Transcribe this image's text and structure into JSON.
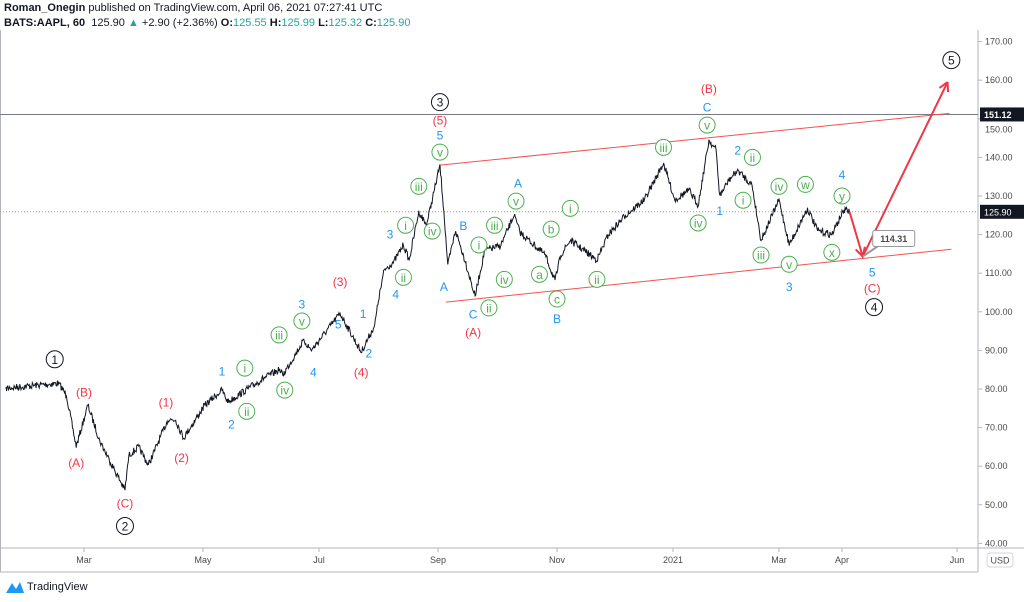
{
  "header": {
    "author": "Roman_Onegin",
    "published": "published on TradingView.com, April 06, 2021 07:27:41 UTC",
    "symbol": "BATS:AAPL, 60",
    "last": "125.90",
    "change": "+2.90 (+2.36%)",
    "o_label": "O:",
    "o": "125.55",
    "h_label": "H:",
    "h": "125.99",
    "l_label": "L:",
    "l": "125.32",
    "c_label": "C:",
    "c": "125.90",
    "up_color": "#26a69a"
  },
  "footer": {
    "brand": "TradingView"
  },
  "chart_data": {
    "type": "line",
    "title": "",
    "currency": "USD",
    "ylim": [
      38.8,
      173
    ],
    "y_ticks": [
      "170.00",
      "160.00",
      "150.00",
      "140.00",
      "130.00",
      "120.00",
      "110.00",
      "100.00",
      "90.00",
      "80.00",
      "70.00",
      "60.00",
      "50.00",
      "40.00"
    ],
    "x_ticks": [
      {
        "label": "Mar",
        "date": "2020-03-01"
      },
      {
        "label": "May",
        "date": "2020-05-01"
      },
      {
        "label": "Jul",
        "date": "2020-07-01"
      },
      {
        "label": "Sep",
        "date": "2020-09-01"
      },
      {
        "label": "Nov",
        "date": "2020-11-01"
      },
      {
        "label": "2021",
        "date": "2021-01-01"
      },
      {
        "label": "Mar",
        "date": "2021-03-01"
      },
      {
        "label": "Apr",
        "date": "2021-04-01"
      },
      {
        "label": "Jun",
        "date": "2021-06-01"
      }
    ],
    "price_series": [
      [
        "2020-01-21",
        80.2
      ],
      [
        "2020-02-17",
        81.5
      ],
      [
        "2020-02-21",
        78.4
      ],
      [
        "2020-02-26",
        65
      ],
      [
        "2020-03-03",
        75.8
      ],
      [
        "2020-03-09",
        66.7
      ],
      [
        "2020-03-14",
        61.6
      ],
      [
        "2020-03-22",
        53.8
      ],
      [
        "2020-03-24",
        62.8
      ],
      [
        "2020-03-29",
        65
      ],
      [
        "2020-04-03",
        60.3
      ],
      [
        "2020-04-13",
        72
      ],
      [
        "2020-04-17",
        72
      ],
      [
        "2020-04-21",
        67.3
      ],
      [
        "2020-05-02",
        75.8
      ],
      [
        "2020-05-11",
        79.7
      ],
      [
        "2020-05-14",
        76.6
      ],
      [
        "2020-06-02",
        82.8
      ],
      [
        "2020-06-10",
        84.9
      ],
      [
        "2020-06-12",
        83.6
      ],
      [
        "2020-06-23",
        92.6
      ],
      [
        "2020-06-27",
        90
      ],
      [
        "2020-07-12",
        99.6
      ],
      [
        "2020-07-23",
        89.5
      ],
      [
        "2020-07-30",
        96.5
      ],
      [
        "2020-08-01",
        103
      ],
      [
        "2020-08-04",
        110.8
      ],
      [
        "2020-08-09",
        113
      ],
      [
        "2020-08-14",
        117.3
      ],
      [
        "2020-08-17",
        113.4
      ],
      [
        "2020-08-22",
        126
      ],
      [
        "2020-08-26",
        122.4
      ],
      [
        "2020-09-02",
        138
      ],
      [
        "2020-09-04",
        126
      ],
      [
        "2020-09-06",
        112
      ],
      [
        "2020-09-10",
        121
      ],
      [
        "2020-09-15",
        113
      ],
      [
        "2020-09-20",
        104
      ],
      [
        "2020-09-25",
        116
      ],
      [
        "2020-10-03",
        117
      ],
      [
        "2020-10-10",
        125
      ],
      [
        "2020-10-13",
        120.6
      ],
      [
        "2020-10-26",
        114.7
      ],
      [
        "2020-10-31",
        108
      ],
      [
        "2020-11-03",
        114.7
      ],
      [
        "2020-11-08",
        118.5
      ],
      [
        "2020-11-22",
        113.4
      ],
      [
        "2020-11-28",
        120
      ],
      [
        "2020-12-07",
        125
      ],
      [
        "2020-12-17",
        129
      ],
      [
        "2020-12-27",
        138.5
      ],
      [
        "2021-01-02",
        129
      ],
      [
        "2021-01-10",
        131.5
      ],
      [
        "2021-01-15",
        127.6
      ],
      [
        "2021-01-21",
        144.5
      ],
      [
        "2021-01-25",
        141.9
      ],
      [
        "2021-01-27",
        130
      ],
      [
        "2021-02-01",
        134
      ],
      [
        "2021-02-06",
        136.7
      ],
      [
        "2021-02-14",
        132.8
      ],
      [
        "2021-02-19",
        118.5
      ],
      [
        "2021-03-01",
        129
      ],
      [
        "2021-03-06",
        117.3
      ],
      [
        "2021-03-15",
        126.8
      ],
      [
        "2021-03-20",
        121
      ],
      [
        "2021-03-27",
        120
      ],
      [
        "2021-04-02",
        126.4
      ],
      [
        "2021-04-05",
        125.9
      ]
    ],
    "last_price": {
      "value": 125.9,
      "label": "125.90",
      "style": "dotted"
    },
    "horizontal_level": {
      "value": 151.12,
      "label": "151.12"
    },
    "channel": {
      "color": "#f05350",
      "upper": [
        [
          "2020-09-02",
          138
        ],
        [
          "2021-05-28",
          151.4
        ]
      ],
      "lower": [
        [
          "2020-09-05",
          102.5
        ],
        [
          "2021-05-29",
          116.2
        ]
      ]
    },
    "projection": {
      "color": "#f23645",
      "points": [
        [
          "2021-04-05",
          125.9
        ],
        [
          "2021-04-12",
          114.31
        ],
        [
          "2021-05-27",
          159.5
        ]
      ],
      "target_label": "114.31"
    },
    "colors": {
      "black": "#131722",
      "red": "#f23645",
      "blue": "#2196f3",
      "green": "#4caf50"
    },
    "annotations": [
      {
        "t": "1",
        "c": "black",
        "circle": true,
        "d": "2020-02-15",
        "p": 87.7
      },
      {
        "t": "2",
        "c": "black",
        "circle": true,
        "d": "2020-03-22",
        "p": 44.5
      },
      {
        "t": "3",
        "c": "black",
        "circle": true,
        "d": "2020-09-02",
        "p": 154.3
      },
      {
        "t": "4",
        "c": "black",
        "circle": true,
        "d": "2021-04-18",
        "p": 101.2
      },
      {
        "t": "5",
        "c": "black",
        "circle": true,
        "d": "2021-05-29",
        "p": 165.2
      },
      {
        "t": "(B)",
        "c": "red",
        "d": "2020-03-01",
        "p": 79.2
      },
      {
        "t": "(A)",
        "c": "red",
        "d": "2020-02-26",
        "p": 61
      },
      {
        "t": "(C)",
        "c": "red",
        "d": "2020-03-22",
        "p": 50.4
      },
      {
        "t": "(1)",
        "c": "red",
        "d": "2020-04-12",
        "p": 76.6
      },
      {
        "t": "(2)",
        "c": "red",
        "d": "2020-04-20",
        "p": 62.3
      },
      {
        "t": "(3)",
        "c": "red",
        "d": "2020-07-12",
        "p": 107.9
      },
      {
        "t": "(4)",
        "c": "red",
        "d": "2020-07-23",
        "p": 84.4
      },
      {
        "t": "(5)",
        "c": "red",
        "d": "2020-09-02",
        "p": 150.2
      },
      {
        "t": "(A)",
        "c": "red",
        "d": "2020-09-19",
        "p": 94.7
      },
      {
        "t": "(B)",
        "c": "red",
        "d": "2021-01-21",
        "p": 157.9
      },
      {
        "t": "(C)",
        "c": "red",
        "d": "2021-04-17",
        "p": 106.1
      },
      {
        "t": "1",
        "c": "blue",
        "d": "2020-05-11",
        "p": 84.6
      },
      {
        "t": "2",
        "c": "blue",
        "d": "2020-05-16",
        "p": 70.9
      },
      {
        "t": "3",
        "c": "blue",
        "d": "2020-06-22",
        "p": 102
      },
      {
        "t": "4",
        "c": "blue",
        "d": "2020-06-28",
        "p": 84.4
      },
      {
        "t": "5",
        "c": "blue",
        "d": "2020-07-11",
        "p": 96.8
      },
      {
        "t": "1",
        "c": "blue",
        "d": "2020-07-24",
        "p": 99.6
      },
      {
        "t": "2",
        "c": "blue",
        "d": "2020-07-27",
        "p": 89.3
      },
      {
        "t": "3",
        "c": "blue",
        "d": "2020-08-07",
        "p": 120.1
      },
      {
        "t": "4",
        "c": "blue",
        "d": "2020-08-10",
        "p": 104.6
      },
      {
        "t": "5",
        "c": "blue",
        "d": "2020-09-02",
        "p": 146.3
      },
      {
        "t": "A",
        "c": "blue",
        "d": "2020-09-04",
        "p": 106.6
      },
      {
        "t": "B",
        "c": "blue",
        "d": "2020-09-14",
        "p": 122.4
      },
      {
        "t": "C",
        "c": "blue",
        "d": "2020-09-19",
        "p": 99.4
      },
      {
        "t": "A",
        "c": "blue",
        "d": "2020-10-12",
        "p": 133.3
      },
      {
        "t": "B",
        "c": "blue",
        "d": "2020-11-01",
        "p": 98.3
      },
      {
        "t": "C",
        "c": "blue",
        "d": "2021-01-20",
        "p": 153
      },
      {
        "t": "2",
        "c": "blue",
        "d": "2021-02-06",
        "p": 141.9
      },
      {
        "t": "1",
        "c": "blue",
        "d": "2021-01-27",
        "p": 126.3
      },
      {
        "t": "4",
        "c": "blue",
        "d": "2021-04-01",
        "p": 135.6
      },
      {
        "t": "3",
        "c": "blue",
        "d": "2021-03-06",
        "p": 106.6
      },
      {
        "t": "5",
        "c": "blue",
        "d": "2021-04-17",
        "p": 110.3
      },
      {
        "t": "i",
        "c": "green",
        "circle": true,
        "d": "2020-05-23",
        "p": 85.4
      },
      {
        "t": "ii",
        "c": "green",
        "circle": true,
        "d": "2020-05-24",
        "p": 74.2
      },
      {
        "t": "iii",
        "c": "green",
        "circle": true,
        "d": "2020-06-10",
        "p": 94
      },
      {
        "t": "iv",
        "c": "green",
        "circle": true,
        "d": "2020-06-13",
        "p": 79.7
      },
      {
        "t": "v",
        "c": "green",
        "circle": true,
        "d": "2020-06-22",
        "p": 97.6
      },
      {
        "t": "i",
        "c": "green",
        "circle": true,
        "d": "2020-08-12",
        "p": 122.4
      },
      {
        "t": "ii",
        "c": "green",
        "circle": true,
        "d": "2020-08-14",
        "p": 108.4
      },
      {
        "t": "iii",
        "c": "green",
        "circle": true,
        "d": "2020-08-22",
        "p": 132.5
      },
      {
        "t": "iv",
        "c": "green",
        "circle": true,
        "d": "2020-08-29",
        "p": 120.9
      },
      {
        "t": "v",
        "c": "green",
        "circle": true,
        "d": "2020-09-02",
        "p": 142.4
      },
      {
        "t": "i",
        "c": "green",
        "circle": true,
        "d": "2020-09-22",
        "p": 117.3
      },
      {
        "t": "ii",
        "c": "green",
        "circle": true,
        "d": "2020-09-23",
        "p": 101
      },
      {
        "t": "iii",
        "c": "green",
        "circle": true,
        "d": "2020-09-30",
        "p": 122.4
      },
      {
        "t": "iv",
        "c": "green",
        "circle": true,
        "d": "2020-10-05",
        "p": 108.4
      },
      {
        "t": "v",
        "c": "green",
        "circle": true,
        "d": "2020-10-11",
        "p": 129.7
      },
      {
        "t": "b",
        "c": "green",
        "circle": true,
        "d": "2020-10-29",
        "p": 121.4
      },
      {
        "t": "a",
        "c": "green",
        "circle": true,
        "d": "2020-10-23",
        "p": 109.7
      },
      {
        "t": "c",
        "c": "green",
        "circle": true,
        "d": "2020-11-01",
        "p": 103.3
      },
      {
        "t": "i",
        "c": "green",
        "circle": true,
        "d": "2020-11-08",
        "p": 126.8
      },
      {
        "t": "ii",
        "c": "green",
        "circle": true,
        "d": "2020-11-22",
        "p": 108.4
      },
      {
        "t": "iii",
        "c": "green",
        "circle": true,
        "d": "2020-12-27",
        "p": 142.6
      },
      {
        "t": "iv",
        "c": "green",
        "circle": true,
        "d": "2021-01-15",
        "p": 123
      },
      {
        "t": "v",
        "c": "green",
        "circle": true,
        "d": "2021-01-20",
        "p": 149.4
      },
      {
        "t": "ii",
        "c": "green",
        "circle": true,
        "d": "2021-02-12",
        "p": 140
      },
      {
        "t": "i",
        "c": "green",
        "circle": true,
        "d": "2021-02-09",
        "p": 128.9
      },
      {
        "t": "iv",
        "c": "green",
        "circle": true,
        "d": "2021-03-01",
        "p": 132.5
      },
      {
        "t": "w",
        "c": "green",
        "circle": true,
        "d": "2021-03-14",
        "p": 133
      },
      {
        "t": "y",
        "c": "green",
        "circle": true,
        "d": "2021-04-01",
        "p": 130
      },
      {
        "t": "iii",
        "c": "green",
        "circle": true,
        "d": "2021-02-19",
        "p": 114.7
      },
      {
        "t": "v",
        "c": "green",
        "circle": true,
        "d": "2021-03-06",
        "p": 112.3
      },
      {
        "t": "x",
        "c": "green",
        "circle": true,
        "d": "2021-03-27",
        "p": 115.4
      }
    ]
  }
}
